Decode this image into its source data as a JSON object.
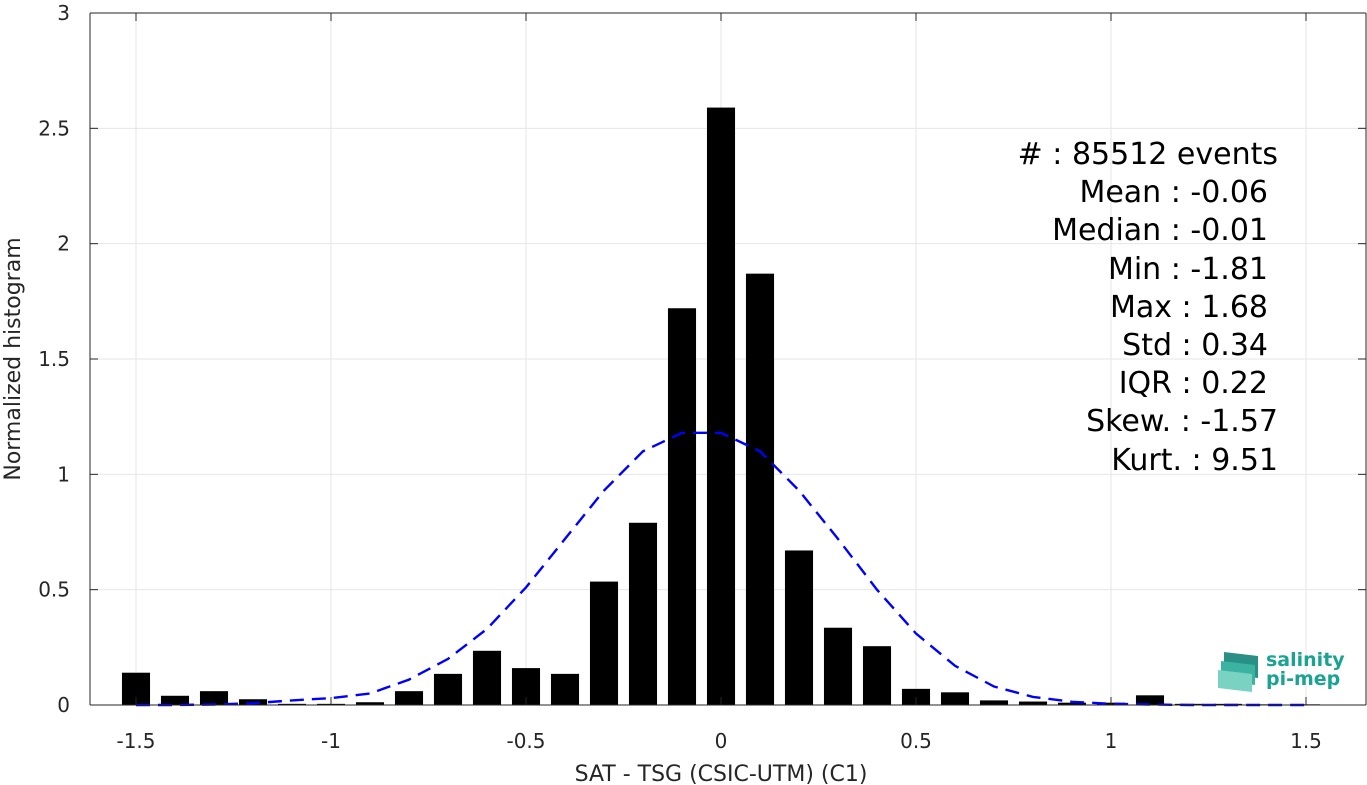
{
  "chart_data": {
    "type": "bar",
    "xlabel": "SAT - TSG (CSIC-UTM) (C1)",
    "ylabel": "Normalized histogram",
    "xlim": [
      -1.6,
      1.6
    ],
    "ylim": [
      0,
      3
    ],
    "xticks": [
      -1.5,
      -1,
      -0.5,
      0,
      0.5,
      1,
      1.5
    ],
    "xtick_labels": [
      "-1.5",
      "-1",
      "-0.5",
      "0",
      "0.5",
      "1",
      "1.5"
    ],
    "yticks": [
      0,
      0.5,
      1,
      1.5,
      2,
      2.5,
      3
    ],
    "ytick_labels": [
      "0",
      "0.5",
      "1",
      "1.5",
      "2",
      "2.5",
      "3"
    ],
    "grid": true,
    "bin_width": 0.1,
    "bins": {
      "x": [
        -1.5,
        -1.4,
        -1.3,
        -1.2,
        -1.1,
        -1.0,
        -0.9,
        -0.8,
        -0.7,
        -0.6,
        -0.5,
        -0.4,
        -0.3,
        -0.2,
        -0.1,
        0.0,
        0.1,
        0.2,
        0.3,
        0.4,
        0.5,
        0.6,
        0.7,
        0.8,
        0.9,
        1.0,
        1.1,
        1.2,
        1.3,
        1.4,
        1.5
      ],
      "values": [
        0.14,
        0.04,
        0.06,
        0.025,
        0.005,
        0.005,
        0.012,
        0.06,
        0.135,
        0.235,
        0.16,
        0.135,
        0.535,
        0.79,
        1.72,
        2.59,
        1.87,
        0.67,
        0.335,
        0.255,
        0.07,
        0.055,
        0.02,
        0.015,
        0.01,
        0.01,
        0.042,
        0.005,
        0.005,
        0.003,
        0.003
      ]
    },
    "fit_curve": {
      "style": "dashed",
      "color": "#0000ff",
      "x": [
        -1.5,
        -1.4,
        -1.3,
        -1.2,
        -1.1,
        -1.0,
        -0.9,
        -0.8,
        -0.7,
        -0.6,
        -0.5,
        -0.4,
        -0.3,
        -0.2,
        -0.1,
        0.0,
        0.1,
        0.2,
        0.3,
        0.4,
        0.5,
        0.6,
        0.7,
        0.8,
        0.9,
        1.0,
        1.1,
        1.2,
        1.3,
        1.4,
        1.5
      ],
      "y": [
        0.0,
        0.0,
        0.002,
        0.008,
        0.02,
        0.03,
        0.05,
        0.11,
        0.2,
        0.33,
        0.51,
        0.72,
        0.93,
        1.1,
        1.18,
        1.18,
        1.1,
        0.93,
        0.72,
        0.5,
        0.31,
        0.17,
        0.08,
        0.035,
        0.014,
        0.005,
        0.002,
        0.0,
        0.0,
        0.0,
        0.0
      ]
    },
    "bar_color": "#000000",
    "annotations": [
      "#  : 85512 events",
      "Mean : -0.06",
      "Median : -0.01",
      "Min : -1.81",
      "Max : 1.68",
      "Std : 0.34",
      "IQR : 0.22",
      "Skew. : -1.57",
      "Kurt. : 9.51"
    ]
  },
  "logo": {
    "line1": "salinity",
    "line2": "pi-mep"
  }
}
